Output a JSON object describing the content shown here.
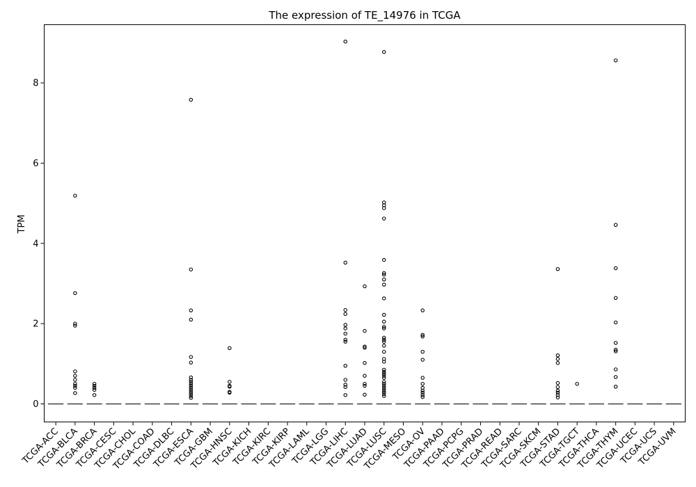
{
  "chart_data": {
    "type": "box",
    "title": "The expression of TE_14976 in TCGA",
    "xlabel": "",
    "ylabel": "TPM",
    "ylim": [
      -0.45,
      9.45
    ],
    "yticks": [
      0,
      2,
      4,
      6,
      8
    ],
    "grid": false,
    "categories": [
      "TCGA-ACC",
      "TCGA-BLCA",
      "TCGA-BRCA",
      "TCGA-CESC",
      "TCGA-CHOL",
      "TCGA-COAD",
      "TCGA-DLBC",
      "TCGA-ESCA",
      "TCGA-GBM",
      "TCGA-HNSC",
      "TCGA-KICH",
      "TCGA-KIRC",
      "TCGA-KIRP",
      "TCGA-LAML",
      "TCGA-LGG",
      "TCGA-LIHC",
      "TCGA-LUAD",
      "TCGA-LUSC",
      "TCGA-MESO",
      "TCGA-OV",
      "TCGA-PAAD",
      "TCGA-PCPG",
      "TCGA-PRAD",
      "TCGA-READ",
      "TCGA-SARC",
      "TCGA-SKCM",
      "TCGA-STAD",
      "TCGA-TGCT",
      "TCGA-THCA",
      "TCGA-THYM",
      "TCGA-UCEC",
      "TCGA-UCS",
      "TCGA-UVM"
    ],
    "median_values": [
      0,
      0,
      0,
      0,
      0,
      0,
      0,
      0,
      0,
      0,
      0,
      0,
      0,
      0,
      0,
      0,
      0,
      0,
      0,
      0,
      0,
      0,
      0,
      0,
      0,
      0,
      0,
      0,
      0,
      0,
      0,
      0,
      0
    ],
    "outliers": {
      "TCGA-BLCA": [
        5.19,
        2.76,
        2.0,
        1.95,
        0.81,
        0.7,
        0.6,
        0.5,
        0.45,
        0.4,
        0.27
      ],
      "TCGA-BRCA": [
        0.5,
        0.45,
        0.4,
        0.35,
        0.22
      ],
      "TCGA-ESCA": [
        7.58,
        3.35,
        2.33,
        2.1,
        1.17,
        1.03,
        0.66,
        0.6,
        0.55,
        0.5,
        0.45,
        0.4,
        0.35,
        0.3,
        0.25,
        0.2,
        0.15
      ],
      "TCGA-HNSC": [
        1.39,
        0.55,
        0.45,
        0.43,
        0.3,
        0.28
      ],
      "TCGA-LIHC": [
        9.03,
        3.52,
        2.34,
        2.24,
        1.97,
        1.88,
        1.75,
        1.6,
        1.55,
        0.95,
        0.6,
        0.48,
        0.42,
        0.22
      ],
      "TCGA-LUAD": [
        2.93,
        1.82,
        1.43,
        1.4,
        1.02,
        0.7,
        0.5,
        0.45,
        0.23
      ],
      "TCGA-LUSC": [
        8.77,
        5.02,
        4.95,
        4.88,
        4.62,
        3.59,
        3.26,
        3.22,
        3.1,
        2.97,
        2.63,
        2.22,
        2.05,
        1.92,
        1.88,
        1.65,
        1.6,
        1.55,
        1.45,
        1.3,
        1.12,
        1.05,
        0.85,
        0.8,
        0.75,
        0.7,
        0.65,
        0.55,
        0.5,
        0.45,
        0.4,
        0.35,
        0.3,
        0.25,
        0.2
      ],
      "TCGA-OV": [
        2.33,
        1.72,
        1.68,
        1.3,
        1.1,
        0.65,
        0.5,
        0.4,
        0.33,
        0.28,
        0.22,
        0.17
      ],
      "TCGA-STAD": [
        3.36,
        1.21,
        1.12,
        1.02,
        0.52,
        0.42,
        0.33,
        0.28,
        0.22,
        0.16
      ],
      "TCGA-TGCT": [
        0.5
      ],
      "TCGA-THYM": [
        8.56,
        4.46,
        3.38,
        2.64,
        2.03,
        1.52,
        1.35,
        1.31,
        0.86,
        0.67,
        0.43
      ]
    }
  }
}
